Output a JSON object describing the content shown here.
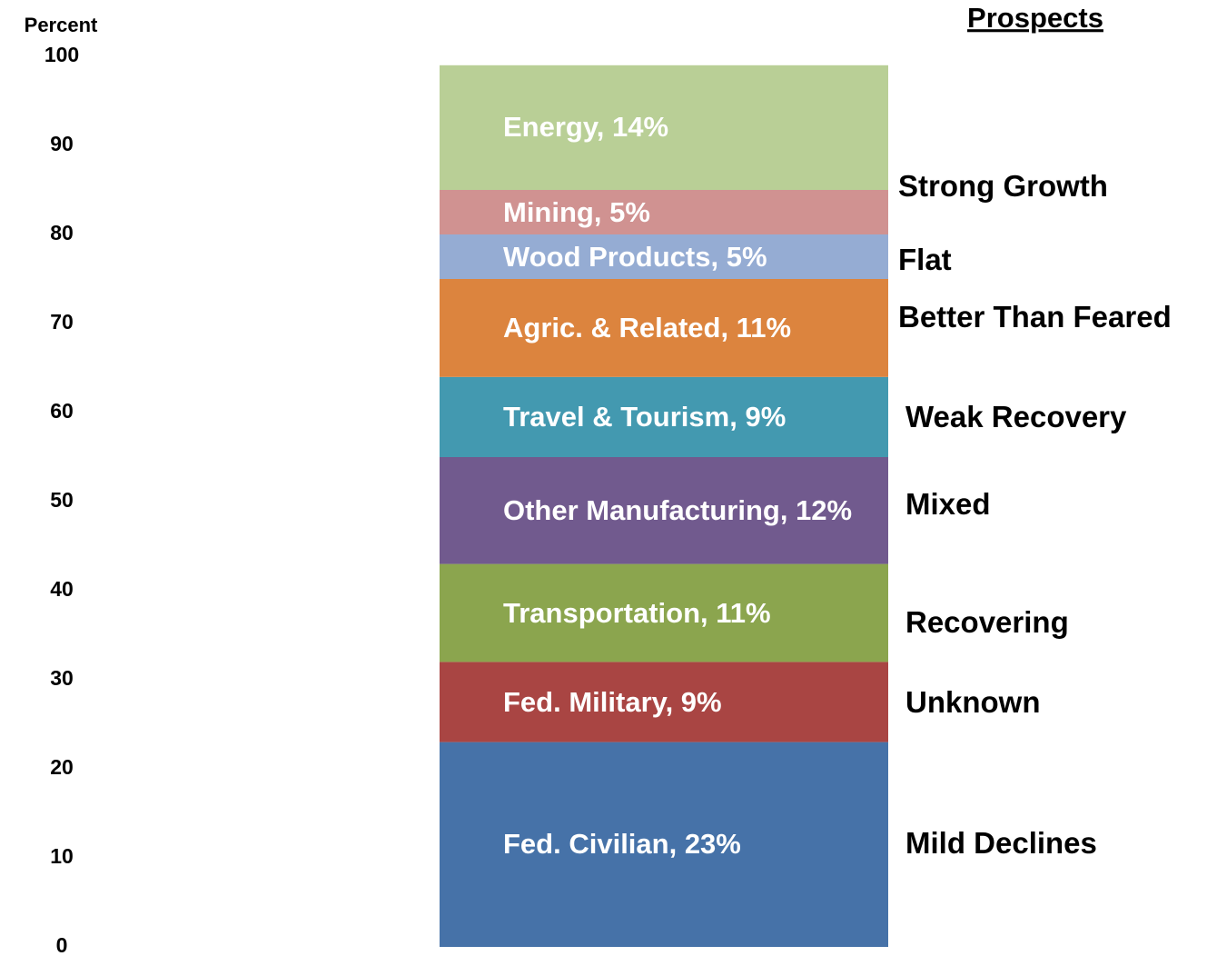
{
  "chart_data": {
    "type": "stacked_bar",
    "ylabel": "Percent",
    "ylim": [
      0,
      100
    ],
    "yticks": [
      0,
      10,
      20,
      30,
      40,
      50,
      60,
      70,
      80,
      90,
      100
    ],
    "series": [
      {
        "color": "#4672a8",
        "values": [
          23
        ],
        "value_labels": [
          "Fed. Civilian, 23%"
        ]
      },
      {
        "color": "#a94543",
        "values": [
          9
        ],
        "value_labels": [
          "Fed. Military, 9%"
        ]
      },
      {
        "color": "#8ba54e",
        "values": [
          11
        ],
        "value_labels": [
          "Transportation, 11%"
        ]
      },
      {
        "color": "#715a8e",
        "values": [
          12
        ],
        "value_labels": [
          "Other Manufacturing, 12%"
        ]
      },
      {
        "color": "#4399b0",
        "values": [
          9
        ],
        "value_labels": [
          "Travel & Tourism, 9%"
        ]
      },
      {
        "color": "#dc843e",
        "values": [
          11
        ],
        "value_labels": [
          "Agric. & Related, 11%"
        ]
      },
      {
        "color": "#95acd3",
        "values": [
          5
        ],
        "value_labels": [
          "Wood Products, 5%"
        ]
      },
      {
        "color": "#d09291",
        "values": [
          5
        ],
        "value_labels": [
          "Mining, 5%"
        ]
      },
      {
        "color": "#b9cf96",
        "values": [
          14
        ],
        "value_labels": [
          "Energy, 14%"
        ]
      }
    ],
    "annotation_title": "Prospects",
    "annotations": [
      "Strong Growth",
      "Flat",
      "Better Than Feared",
      "Weak Recovery",
      "Mixed",
      "Recovering",
      "Unknown",
      "Mild Declines"
    ]
  }
}
